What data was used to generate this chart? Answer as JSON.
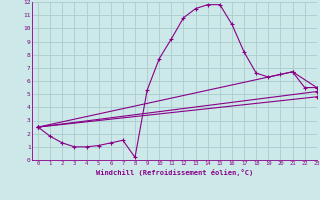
{
  "bg_color": "#cce8e8",
  "line_color": "#880088",
  "grid_color": "#aacccc",
  "xlabel": "Windchill (Refroidissement éolien,°C)",
  "xlim": [
    -0.5,
    23
  ],
  "ylim": [
    0,
    12
  ],
  "xticks": [
    0,
    1,
    2,
    3,
    4,
    5,
    6,
    7,
    8,
    9,
    10,
    11,
    12,
    13,
    14,
    15,
    16,
    17,
    18,
    19,
    20,
    21,
    22,
    23
  ],
  "yticks": [
    0,
    1,
    2,
    3,
    4,
    5,
    6,
    7,
    8,
    9,
    10,
    11,
    12
  ],
  "series": [
    {
      "x": [
        0,
        1,
        2,
        3,
        4,
        5,
        6,
        7,
        8,
        9,
        10,
        11,
        12,
        13,
        14,
        15,
        16,
        17,
        18,
        19,
        20,
        21,
        22,
        23
      ],
      "y": [
        2.5,
        1.8,
        1.3,
        1.0,
        1.0,
        1.1,
        1.3,
        1.5,
        0.2,
        5.3,
        7.7,
        9.2,
        10.8,
        11.5,
        11.8,
        11.8,
        10.3,
        8.2,
        6.6,
        6.3,
        6.5,
        6.7,
        5.5,
        5.5
      ]
    },
    {
      "x": [
        0,
        21,
        23
      ],
      "y": [
        2.5,
        6.7,
        5.5
      ]
    },
    {
      "x": [
        0,
        23
      ],
      "y": [
        2.5,
        5.2
      ]
    },
    {
      "x": [
        0,
        23
      ],
      "y": [
        2.5,
        4.8
      ]
    }
  ],
  "figsize": [
    3.2,
    2.0
  ],
  "dpi": 100
}
